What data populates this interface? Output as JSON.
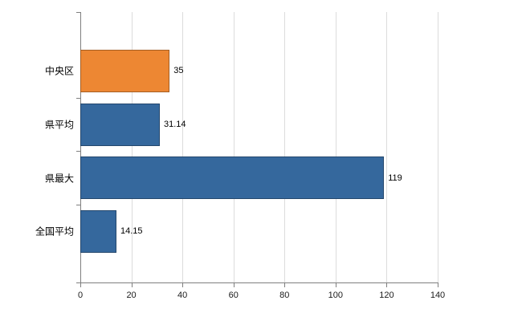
{
  "chart_data": {
    "type": "bar",
    "orientation": "horizontal",
    "title": "",
    "categories": [
      "中央区",
      "県平均",
      "県最大",
      "全国平均"
    ],
    "values": [
      35,
      31.14,
      119,
      14.15
    ],
    "value_labels": [
      "35",
      "31.14",
      "119",
      "14.15"
    ],
    "series": [
      {
        "name": "value",
        "values": [
          35,
          31.14,
          119,
          14.15
        ],
        "colors": [
          "#ED8733",
          "#35689D",
          "#35689D",
          "#35689D"
        ]
      }
    ],
    "xlim": [
      0,
      140
    ],
    "x_ticks": [
      0,
      20,
      40,
      60,
      80,
      100,
      120,
      140
    ],
    "x_tick_labels": [
      "0",
      "20",
      "40",
      "60",
      "80",
      "100",
      "120",
      "140"
    ],
    "grid": true,
    "legend": "none"
  },
  "colors": {
    "bar_highlight": "#ED8733",
    "bar_default": "#35689D",
    "axis": "#7f7f7f",
    "gridline": "#dcdcdc",
    "text": "#000000",
    "background": "#ffffff"
  }
}
